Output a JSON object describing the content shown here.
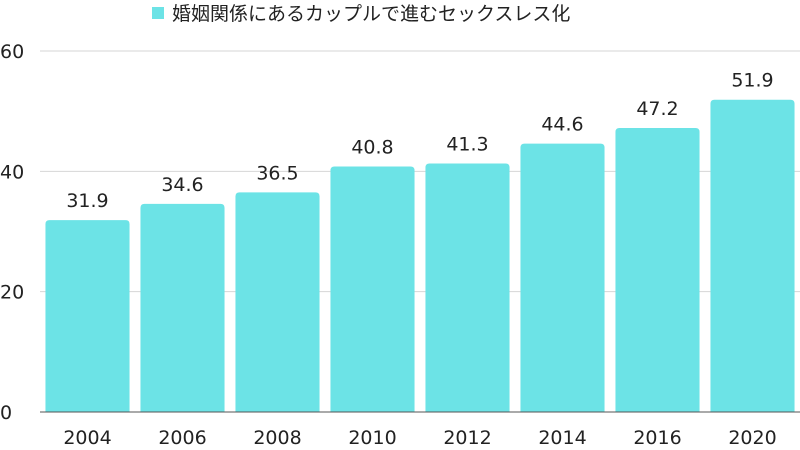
{
  "chart_data": {
    "type": "bar",
    "series": [
      {
        "name": "婚姻関係にあるカップルで進むセックスレス化",
        "values": [
          31.9,
          34.6,
          36.5,
          40.8,
          41.3,
          44.6,
          47.2,
          51.9
        ],
        "color": "#6ce3e6"
      }
    ],
    "categories": [
      "2004",
      "2006",
      "2008",
      "2010",
      "2012",
      "2014",
      "2016",
      "2020"
    ],
    "data_labels": [
      "31.9",
      "34.6",
      "36.5",
      "40.8",
      "41.3",
      "44.6",
      "47.2",
      "51.9"
    ],
    "y_ticks": [
      "0",
      "20",
      "40",
      "60"
    ],
    "ylim": [
      0,
      60
    ],
    "grid": true,
    "legend_position": "top-center",
    "title": "",
    "xlabel": "",
    "ylabel": ""
  }
}
